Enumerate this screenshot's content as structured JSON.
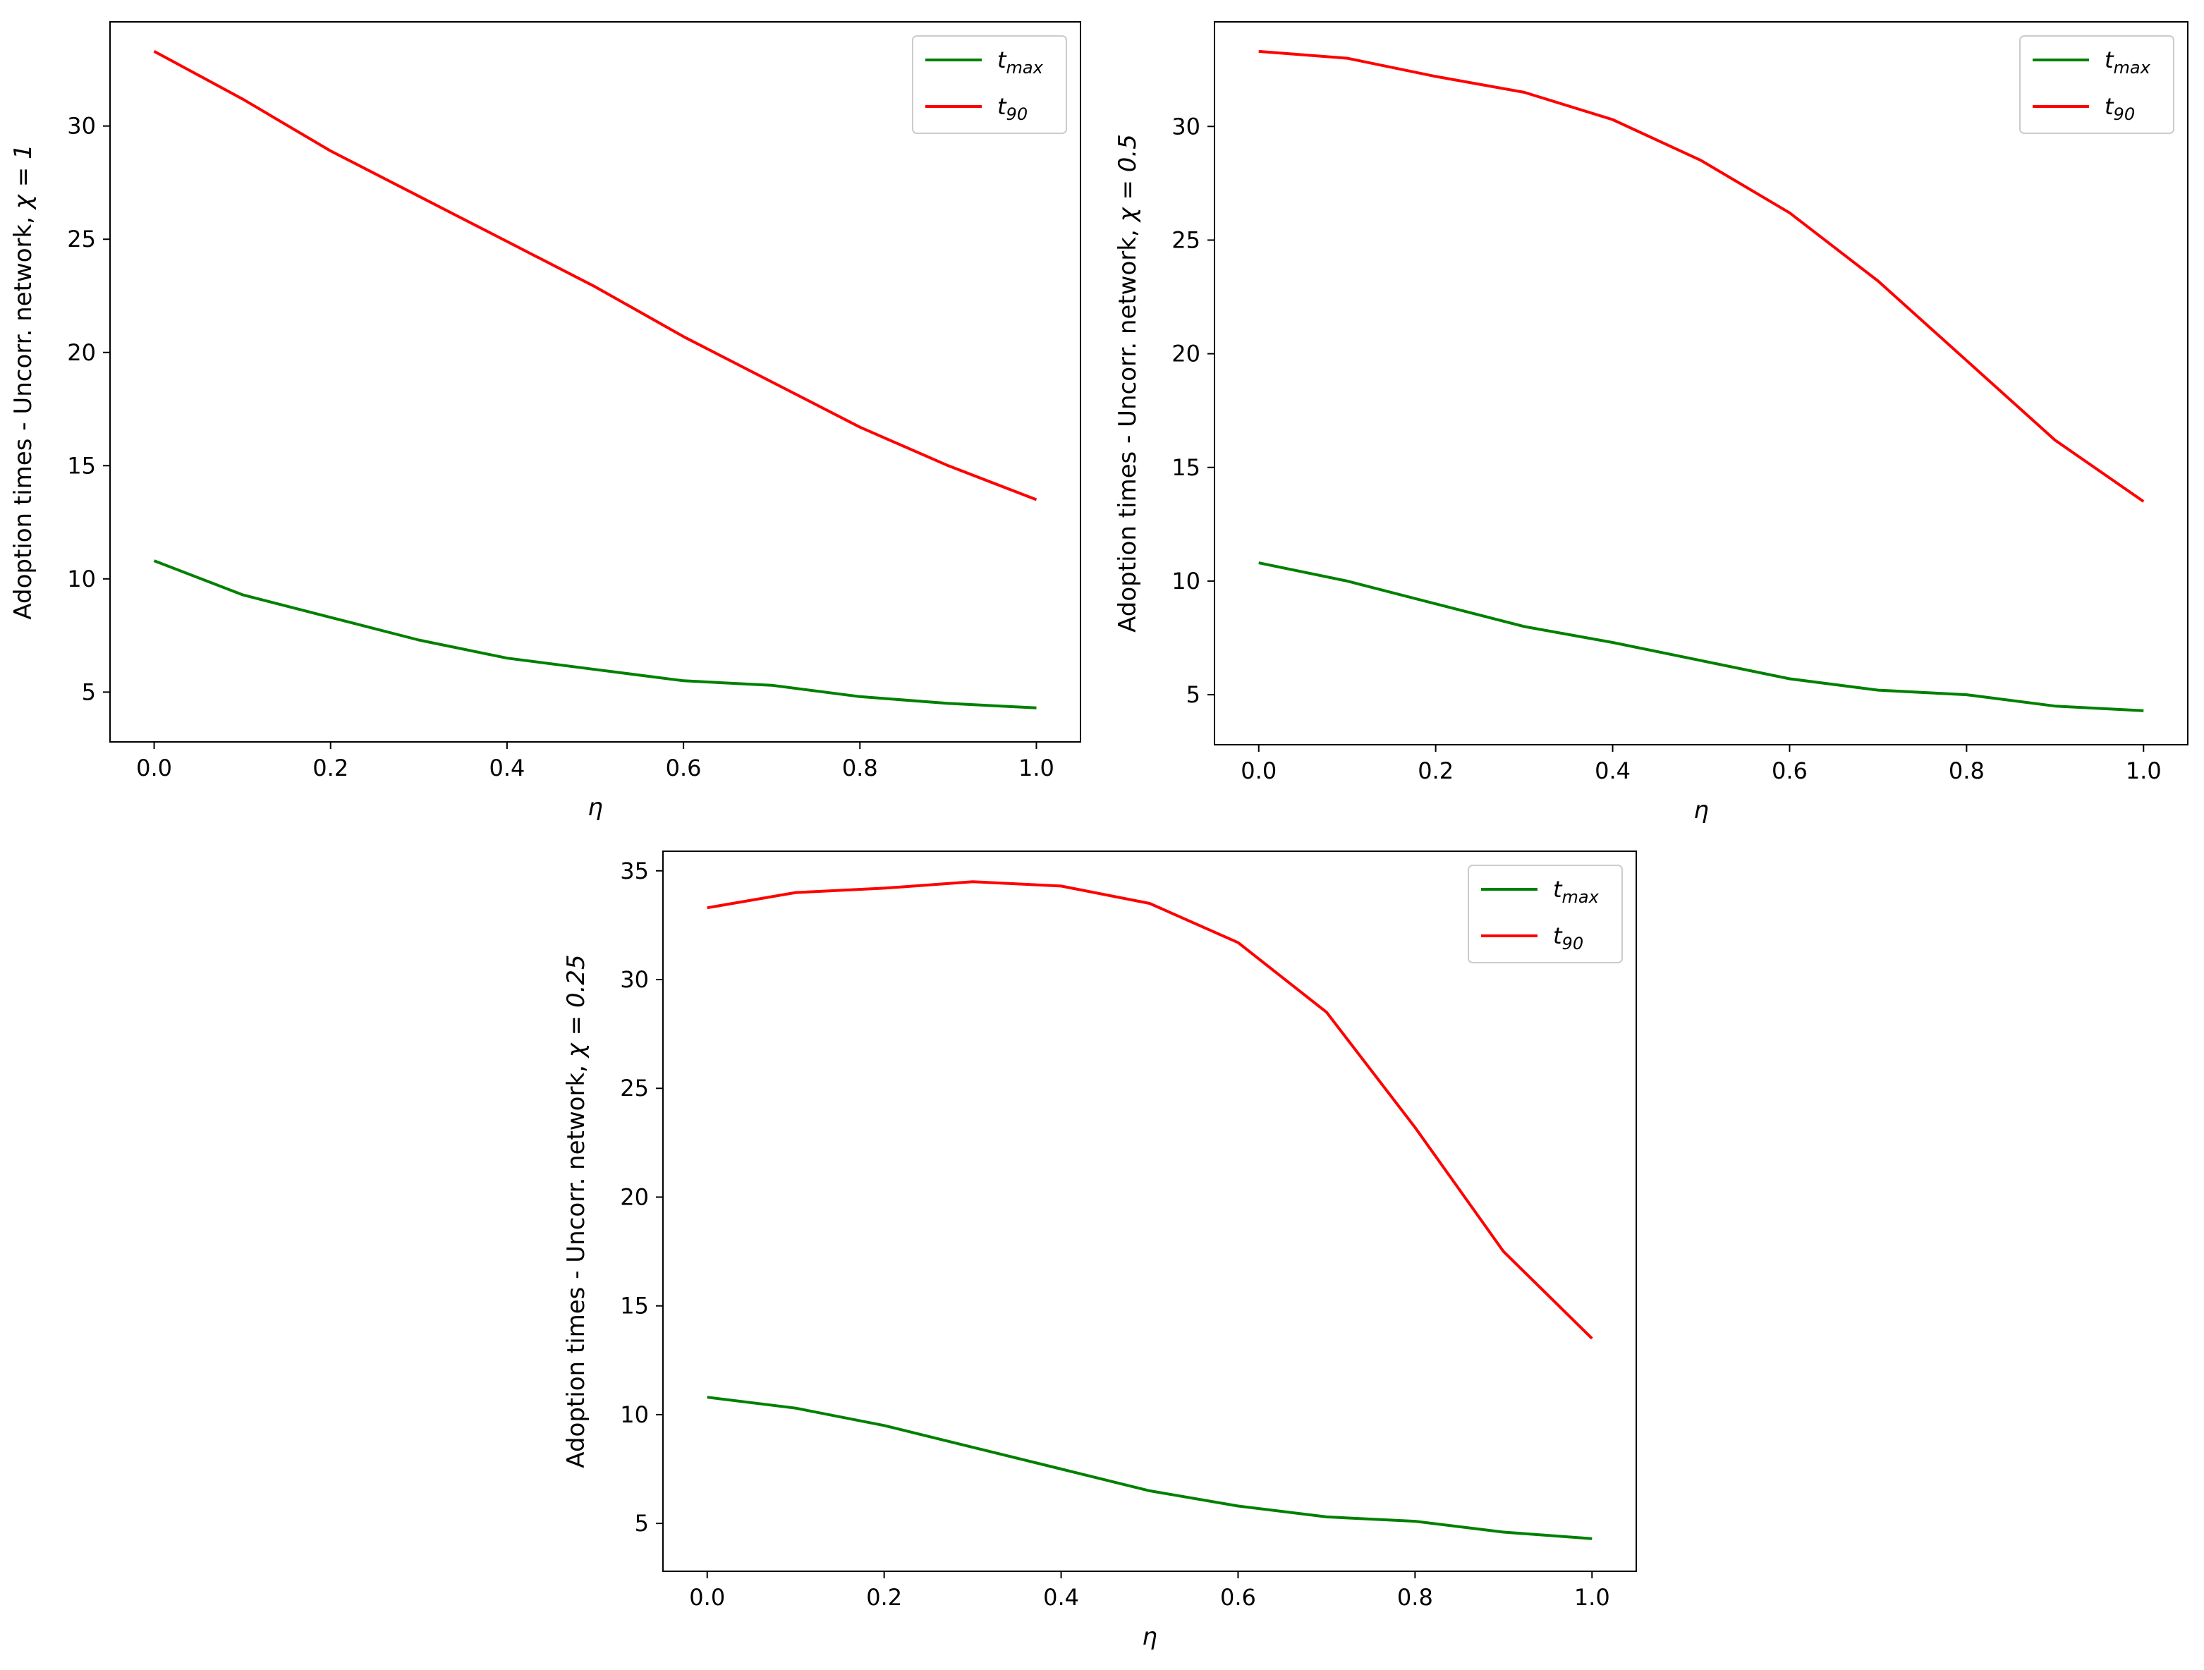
{
  "figure": {
    "layout": "two charts on top row, one centered below"
  },
  "chart_data": [
    {
      "type": "line",
      "title": "",
      "xlabel": "η",
      "ylabel": "Adoption times - Uncorr. network, χ = 1",
      "ylabel_main": "Adoption times - Uncorr. network, ",
      "ylabel_param": "χ = 1",
      "xlim": [
        -0.05,
        1.05
      ],
      "ylim": [
        2.8,
        34.6
      ],
      "xticks": [
        0.0,
        0.2,
        0.4,
        0.6,
        0.8,
        1.0
      ],
      "xtick_labels": [
        "0.0",
        "0.2",
        "0.4",
        "0.6",
        "0.8",
        "1.0"
      ],
      "yticks": [
        5,
        10,
        15,
        20,
        25,
        30
      ],
      "ytick_labels": [
        "5",
        "10",
        "15",
        "20",
        "25",
        "30"
      ],
      "grid": false,
      "legend_position": "top-right",
      "x": [
        0.0,
        0.1,
        0.2,
        0.3,
        0.4,
        0.5,
        0.6,
        0.7,
        0.8,
        0.9,
        1.0
      ],
      "series": [
        {
          "name": "t_max",
          "label_base": "t",
          "label_sub": "max",
          "color": "#008000",
          "values": [
            10.8,
            9.3,
            8.3,
            7.3,
            6.5,
            6.0,
            5.5,
            5.3,
            4.8,
            4.5,
            4.3
          ]
        },
        {
          "name": "t_90",
          "label_base": "t",
          "label_sub": "90",
          "color": "#ff0000",
          "values": [
            33.3,
            31.2,
            28.9,
            26.9,
            24.9,
            22.9,
            20.7,
            18.7,
            16.7,
            15.0,
            13.5
          ]
        }
      ]
    },
    {
      "type": "line",
      "title": "",
      "xlabel": "η",
      "ylabel": "Adoption times - Uncorr. network, χ = 0.5",
      "ylabel_main": "Adoption times - Uncorr. network, ",
      "ylabel_param": "χ = 0.5",
      "xlim": [
        -0.05,
        1.05
      ],
      "ylim": [
        2.8,
        34.6
      ],
      "xticks": [
        0.0,
        0.2,
        0.4,
        0.6,
        0.8,
        1.0
      ],
      "xtick_labels": [
        "0.0",
        "0.2",
        "0.4",
        "0.6",
        "0.8",
        "1.0"
      ],
      "yticks": [
        5,
        10,
        15,
        20,
        25,
        30
      ],
      "ytick_labels": [
        "5",
        "10",
        "15",
        "20",
        "25",
        "30"
      ],
      "grid": false,
      "legend_position": "top-right",
      "x": [
        0.0,
        0.1,
        0.2,
        0.3,
        0.4,
        0.5,
        0.6,
        0.7,
        0.8,
        0.9,
        1.0
      ],
      "series": [
        {
          "name": "t_max",
          "label_base": "t",
          "label_sub": "max",
          "color": "#008000",
          "values": [
            10.8,
            10.0,
            9.0,
            8.0,
            7.3,
            6.5,
            5.7,
            5.2,
            5.0,
            4.5,
            4.3
          ]
        },
        {
          "name": "t_90",
          "label_base": "t",
          "label_sub": "90",
          "color": "#ff0000",
          "values": [
            33.3,
            33.0,
            32.2,
            31.5,
            30.3,
            28.5,
            26.2,
            23.2,
            19.7,
            16.2,
            13.5
          ]
        }
      ]
    },
    {
      "type": "line",
      "title": "",
      "xlabel": "η",
      "ylabel": "Adoption times - Uncorr. network, χ = 0.25",
      "ylabel_main": "Adoption times - Uncorr. network, ",
      "ylabel_param": "χ = 0.25",
      "xlim": [
        -0.05,
        1.05
      ],
      "ylim": [
        2.8,
        35.9
      ],
      "xticks": [
        0.0,
        0.2,
        0.4,
        0.6,
        0.8,
        1.0
      ],
      "xtick_labels": [
        "0.0",
        "0.2",
        "0.4",
        "0.6",
        "0.8",
        "1.0"
      ],
      "yticks": [
        5,
        10,
        15,
        20,
        25,
        30,
        35
      ],
      "ytick_labels": [
        "5",
        "10",
        "15",
        "20",
        "25",
        "30",
        "35"
      ],
      "grid": false,
      "legend_position": "top-right",
      "x": [
        0.0,
        0.1,
        0.2,
        0.3,
        0.4,
        0.5,
        0.6,
        0.7,
        0.8,
        0.9,
        1.0
      ],
      "series": [
        {
          "name": "t_max",
          "label_base": "t",
          "label_sub": "max",
          "color": "#008000",
          "values": [
            10.8,
            10.3,
            9.5,
            8.5,
            7.5,
            6.5,
            5.8,
            5.3,
            5.1,
            4.6,
            4.3
          ]
        },
        {
          "name": "t_90",
          "label_base": "t",
          "label_sub": "90",
          "color": "#ff0000",
          "values": [
            33.3,
            34.0,
            34.2,
            34.5,
            34.3,
            33.5,
            31.7,
            28.5,
            23.2,
            17.5,
            13.5
          ]
        }
      ]
    }
  ]
}
